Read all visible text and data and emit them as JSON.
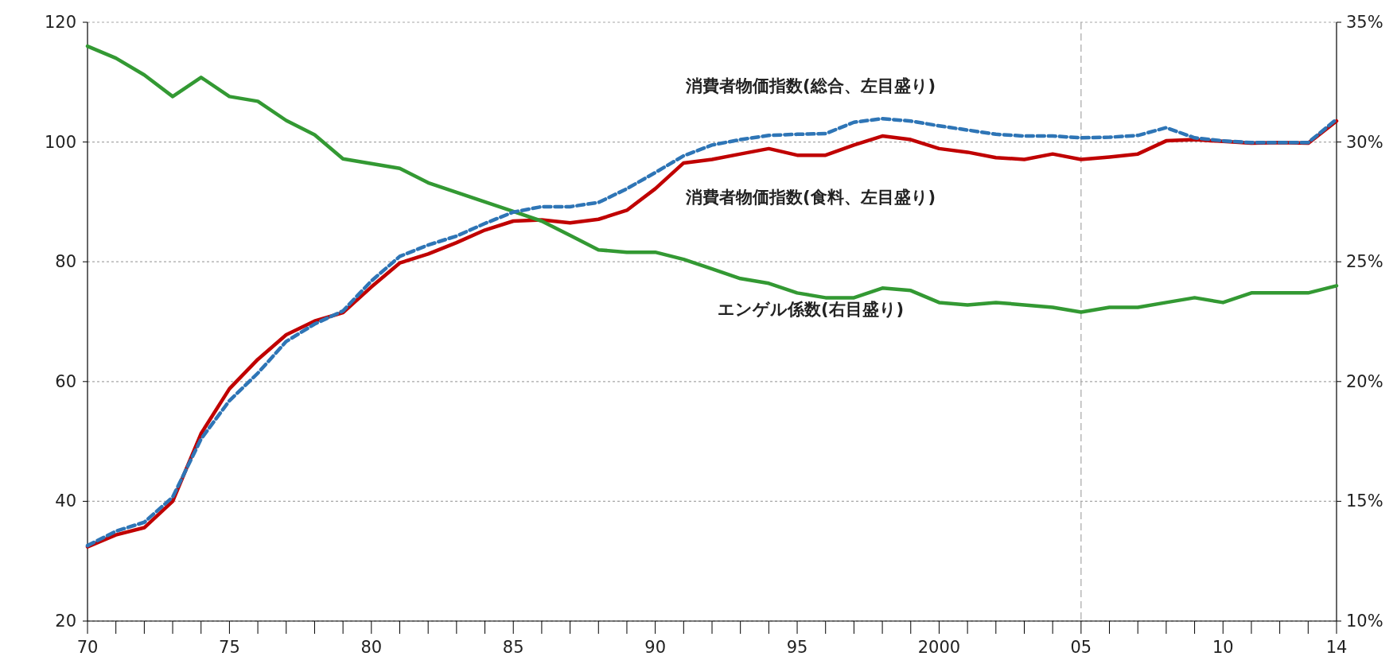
{
  "chart_data": {
    "type": "line",
    "x": [
      1970,
      1971,
      1972,
      1973,
      1974,
      1975,
      1976,
      1977,
      1978,
      1979,
      1980,
      1981,
      1982,
      1983,
      1984,
      1985,
      1986,
      1987,
      1988,
      1989,
      1990,
      1991,
      1992,
      1993,
      1994,
      1995,
      1996,
      1997,
      1998,
      1999,
      2000,
      2001,
      2002,
      2003,
      2004,
      2005,
      2006,
      2007,
      2008,
      2009,
      2010,
      2011,
      2012,
      2013,
      2014
    ],
    "series": [
      {
        "name": "消費者物価指数(総合、左目盛り)",
        "color": "#2e75b6",
        "line_style": "dashed",
        "values": [
          32.6,
          35,
          36.5,
          40.7,
          50.4,
          56.8,
          61.4,
          66.7,
          69.6,
          71.8,
          76.8,
          80.9,
          82.8,
          84.3,
          86.4,
          88.3,
          89.2,
          89.2,
          89.9,
          92.2,
          94.9,
          97.7,
          99.5,
          100.4,
          101.1,
          101.3,
          101.4,
          103.3,
          103.9,
          103.5,
          102.7,
          102,
          101.3,
          101,
          101,
          100.7,
          100.8,
          101.1,
          102.4,
          100.7,
          100.2,
          99.9,
          99.9,
          99.9,
          103.8
        ]
      },
      {
        "name": "消費者物価指数(食料、左目盛り)",
        "color": "#c00000",
        "line_style": "solid",
        "values": [
          32.4,
          34.4,
          35.6,
          40,
          51.3,
          58.8,
          63.7,
          67.8,
          70.1,
          71.5,
          75.8,
          79.8,
          81.3,
          83.2,
          85.3,
          86.8,
          87,
          86.5,
          87.1,
          88.6,
          92.2,
          96.5,
          97.1,
          98,
          98.9,
          97.8,
          97.8,
          99.5,
          101,
          100.4,
          98.9,
          98.3,
          97.4,
          97.1,
          98,
          97.1,
          97.5,
          98,
          100.2,
          100.4,
          100.1,
          99.8,
          99.9,
          99.8,
          103.5
        ]
      },
      {
        "name": "エンゲル係数(右目盛り)",
        "color": "#339933",
        "line_style": "solid",
        "axis": "y2",
        "values": [
          34.0,
          33.5,
          32.8,
          31.9,
          32.7,
          31.9,
          31.7,
          30.9,
          30.3,
          29.3,
          29.1,
          28.9,
          28.3,
          27.9,
          27.5,
          27.1,
          26.7,
          26.1,
          25.5,
          25.4,
          25.4,
          25.1,
          24.7,
          24.3,
          24.1,
          23.7,
          23.5,
          23.5,
          23.9,
          23.8,
          23.3,
          23.2,
          23.3,
          23.2,
          23.1,
          22.9,
          23.1,
          23.1,
          23.3,
          23.5,
          23.3,
          23.7,
          23.7,
          23.7,
          24.0
        ]
      }
    ],
    "xlim": [
      1970,
      2014
    ],
    "xticks": [
      {
        "value": 1970,
        "label": "70"
      },
      {
        "value": 1971,
        "label": null
      },
      {
        "value": 1972,
        "label": null
      },
      {
        "value": 1973,
        "label": null
      },
      {
        "value": 1974,
        "label": null
      },
      {
        "value": 1975,
        "label": "75"
      },
      {
        "value": 1976,
        "label": null
      },
      {
        "value": 1977,
        "label": null
      },
      {
        "value": 1978,
        "label": null
      },
      {
        "value": 1979,
        "label": null
      },
      {
        "value": 1980,
        "label": "80"
      },
      {
        "value": 1981,
        "label": null
      },
      {
        "value": 1982,
        "label": null
      },
      {
        "value": 1983,
        "label": null
      },
      {
        "value": 1984,
        "label": null
      },
      {
        "value": 1985,
        "label": "85"
      },
      {
        "value": 1986,
        "label": null
      },
      {
        "value": 1987,
        "label": null
      },
      {
        "value": 1988,
        "label": null
      },
      {
        "value": 1989,
        "label": null
      },
      {
        "value": 1990,
        "label": "90"
      },
      {
        "value": 1991,
        "label": null
      },
      {
        "value": 1992,
        "label": null
      },
      {
        "value": 1993,
        "label": null
      },
      {
        "value": 1994,
        "label": null
      },
      {
        "value": 1995,
        "label": "95"
      },
      {
        "value": 1996,
        "label": null
      },
      {
        "value": 1997,
        "label": null
      },
      {
        "value": 1998,
        "label": null
      },
      {
        "value": 1999,
        "label": null
      },
      {
        "value": 2000,
        "label": "2000"
      },
      {
        "value": 2001,
        "label": null
      },
      {
        "value": 2002,
        "label": null
      },
      {
        "value": 2003,
        "label": null
      },
      {
        "value": 2004,
        "label": null
      },
      {
        "value": 2005,
        "label": "05"
      },
      {
        "value": 2006,
        "label": null
      },
      {
        "value": 2007,
        "label": null
      },
      {
        "value": 2008,
        "label": null
      },
      {
        "value": 2009,
        "label": null
      },
      {
        "value": 2010,
        "label": "10"
      },
      {
        "value": 2011,
        "label": null
      },
      {
        "value": 2012,
        "label": null
      },
      {
        "value": 2013,
        "label": null
      },
      {
        "value": 2014,
        "label": "14"
      }
    ],
    "ylim": [
      20,
      120
    ],
    "yticks": [
      20,
      40,
      60,
      80,
      100,
      120
    ],
    "y2lim": [
      10,
      35
    ],
    "y2ticks": [
      {
        "value": 10,
        "label": "10%"
      },
      {
        "value": 15,
        "label": "15%"
      },
      {
        "value": 20,
        "label": "20%"
      },
      {
        "value": 25,
        "label": "25%"
      },
      {
        "value": 30,
        "label": "30%"
      },
      {
        "value": 35,
        "label": "35%"
      }
    ],
    "grid": "y",
    "ref_lines": [
      {
        "axis": "x",
        "value": 2005,
        "color": "#a6a6a6",
        "line_style": "dashed"
      }
    ]
  }
}
